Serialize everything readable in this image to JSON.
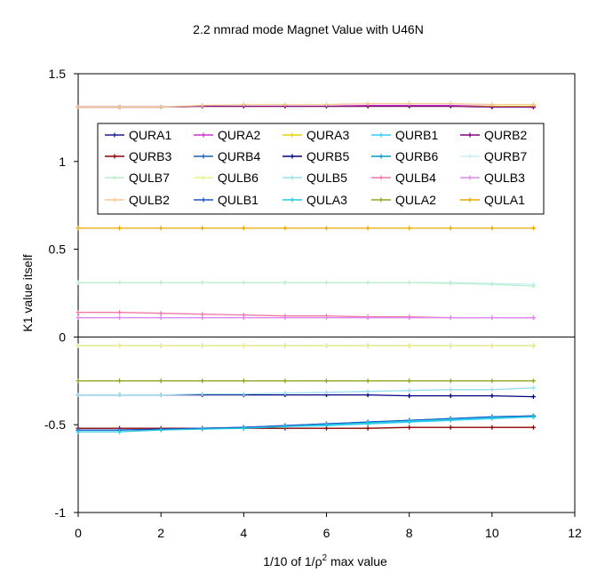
{
  "chart_data": {
    "type": "line",
    "title": "2.2 nmrad mode Magnet Value with U46N",
    "xlabel_prefix": "1/10 of 1/ρ",
    "xlabel_sup": "2",
    "xlabel_suffix": " max value",
    "ylabel": "K1 value itself",
    "xlim": [
      0,
      12
    ],
    "ylim": [
      -1,
      1.5
    ],
    "x_ticks": [
      0,
      2,
      4,
      6,
      8,
      10,
      12
    ],
    "x_tick_labels": [
      "0",
      "2",
      "4",
      "6",
      "8",
      "10",
      "12"
    ],
    "y_ticks": [
      -1,
      -0.5,
      0,
      0.5,
      1,
      1.5
    ],
    "y_tick_labels": [
      "-1",
      "-0.5",
      "0",
      "0.5",
      "1",
      "1.5"
    ],
    "grid": false,
    "legend_placement": "inside-top",
    "x": [
      0,
      1,
      2,
      3,
      4,
      5,
      6,
      7,
      8,
      9,
      10,
      11
    ],
    "series": [
      {
        "name": "QURA1",
        "color": "#1a1a8c",
        "values": [
          1.31,
          1.31,
          1.31,
          1.315,
          1.315,
          1.315,
          1.315,
          1.315,
          1.315,
          1.315,
          1.31,
          1.31
        ]
      },
      {
        "name": "QURA2",
        "color": "#cc33cc",
        "values": [
          1.31,
          1.31,
          1.31,
          1.315,
          1.315,
          1.315,
          1.315,
          1.32,
          1.32,
          1.32,
          1.315,
          1.315
        ]
      },
      {
        "name": "QURA3",
        "color": "#e6d400",
        "values": [
          1.31,
          1.31,
          1.31,
          1.315,
          1.315,
          1.315,
          1.315,
          1.315,
          1.315,
          1.315,
          1.315,
          1.315
        ]
      },
      {
        "name": "QURB1",
        "color": "#33ccff",
        "values": [
          -0.53,
          -0.53,
          -0.525,
          -0.52,
          -0.515,
          -0.51,
          -0.505,
          -0.495,
          -0.485,
          -0.475,
          -0.465,
          -0.455
        ]
      },
      {
        "name": "QURB2",
        "color": "#800080",
        "values": [
          1.31,
          1.31,
          1.31,
          1.315,
          1.315,
          1.315,
          1.315,
          1.315,
          1.315,
          1.315,
          1.31,
          1.31
        ]
      },
      {
        "name": "QURB3",
        "color": "#8b0000",
        "values": [
          -0.52,
          -0.52,
          -0.52,
          -0.52,
          -0.52,
          -0.52,
          -0.52,
          -0.52,
          -0.515,
          -0.515,
          -0.515,
          -0.515
        ]
      },
      {
        "name": "QURB4",
        "color": "#1a5fb4",
        "values": [
          -0.53,
          -0.53,
          -0.525,
          -0.52,
          -0.515,
          -0.505,
          -0.495,
          -0.485,
          -0.475,
          -0.465,
          -0.455,
          -0.45
        ]
      },
      {
        "name": "QURB5",
        "color": "#000080",
        "values": [
          -0.33,
          -0.33,
          -0.33,
          -0.33,
          -0.33,
          -0.33,
          -0.33,
          -0.33,
          -0.335,
          -0.335,
          -0.335,
          -0.34
        ]
      },
      {
        "name": "QURB6",
        "color": "#0099cc",
        "values": [
          -0.05,
          -0.05,
          -0.05,
          -0.05,
          -0.05,
          -0.05,
          -0.05,
          -0.05,
          -0.05,
          -0.05,
          -0.05,
          -0.05
        ]
      },
      {
        "name": "QURB7",
        "color": "#c5edf7",
        "values": [
          0.31,
          0.31,
          0.31,
          0.31,
          0.31,
          0.31,
          0.31,
          0.31,
          0.31,
          0.31,
          0.305,
          0.3
        ]
      },
      {
        "name": "QULB7",
        "color": "#b8f0c8",
        "values": [
          0.31,
          0.31,
          0.31,
          0.31,
          0.31,
          0.31,
          0.31,
          0.31,
          0.31,
          0.305,
          0.3,
          0.29
        ]
      },
      {
        "name": "QULB6",
        "color": "#eeee88",
        "values": [
          -0.05,
          -0.05,
          -0.05,
          -0.05,
          -0.05,
          -0.05,
          -0.05,
          -0.05,
          -0.05,
          -0.05,
          -0.05,
          -0.05
        ]
      },
      {
        "name": "QULB5",
        "color": "#99ddee",
        "values": [
          -0.33,
          -0.33,
          -0.33,
          -0.325,
          -0.325,
          -0.32,
          -0.315,
          -0.31,
          -0.305,
          -0.3,
          -0.3,
          -0.29
        ]
      },
      {
        "name": "QULB4",
        "color": "#ee77aa",
        "values": [
          0.14,
          0.14,
          0.135,
          0.13,
          0.125,
          0.12,
          0.12,
          0.115,
          0.115,
          0.11,
          0.11,
          0.11
        ]
      },
      {
        "name": "QULB3",
        "color": "#dd88ee",
        "values": [
          0.11,
          0.11,
          0.11,
          0.11,
          0.11,
          0.11,
          0.11,
          0.11,
          0.11,
          0.11,
          0.11,
          0.11
        ]
      },
      {
        "name": "QULB2",
        "color": "#f5c890",
        "values": [
          1.31,
          1.31,
          1.31,
          1.32,
          1.325,
          1.325,
          1.325,
          1.33,
          1.33,
          1.33,
          1.325,
          1.325
        ]
      },
      {
        "name": "QULB1",
        "color": "#1a55cc",
        "values": [
          -0.53,
          -0.53,
          -0.525,
          -0.52,
          -0.515,
          -0.505,
          -0.495,
          -0.485,
          -0.475,
          -0.465,
          -0.455,
          -0.45
        ]
      },
      {
        "name": "QULA3",
        "color": "#22ccdd",
        "values": [
          -0.54,
          -0.54,
          -0.53,
          -0.525,
          -0.52,
          -0.51,
          -0.5,
          -0.49,
          -0.48,
          -0.47,
          -0.46,
          -0.455
        ]
      },
      {
        "name": "QULA2",
        "color": "#88aa22",
        "values": [
          -0.25,
          -0.25,
          -0.25,
          -0.25,
          -0.25,
          -0.25,
          -0.25,
          -0.25,
          -0.25,
          -0.25,
          -0.25,
          -0.25
        ]
      },
      {
        "name": "QULA1",
        "color": "#e6a800",
        "values": [
          0.62,
          0.62,
          0.62,
          0.62,
          0.62,
          0.62,
          0.62,
          0.62,
          0.62,
          0.62,
          0.62,
          0.62
        ]
      }
    ]
  }
}
